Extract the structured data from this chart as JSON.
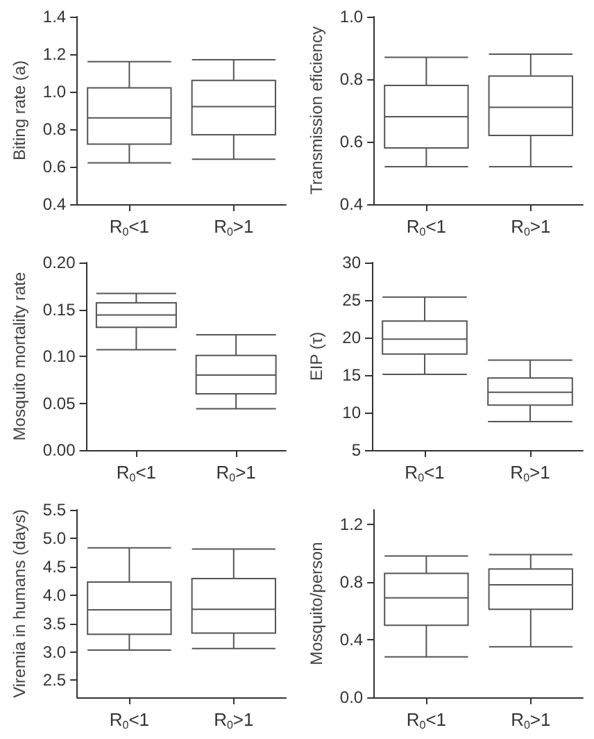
{
  "chart_data": [
    {
      "type": "box",
      "ylabel": "Biting rate (a)",
      "categories": [
        "R$_{0}$<1",
        "R$_{0}$>1"
      ],
      "ylim": [
        0.4,
        1.4
      ],
      "yticks": [
        0.4,
        0.6,
        0.8,
        {
          "value": 1,
          "label": "1.0"
        },
        1.2,
        1.4
      ],
      "boxes": [
        {
          "low": 0.62,
          "q1": 0.72,
          "median": 0.86,
          "q3": 1.02,
          "high": 1.16
        },
        {
          "low": 0.64,
          "q1": 0.77,
          "median": 0.92,
          "q3": 1.06,
          "high": 1.17
        }
      ]
    },
    {
      "type": "box",
      "ylabel": "Transmission eficiency",
      "categories": [
        "R$_{0}$<1",
        "R$_{0}$>1"
      ],
      "ylim": [
        0.4,
        1.0
      ],
      "yticks": [
        0.4,
        0.6,
        0.8,
        {
          "value": 1,
          "label": "1.0"
        }
      ],
      "boxes": [
        {
          "low": 0.52,
          "q1": 0.58,
          "median": 0.68,
          "q3": 0.78,
          "high": 0.87
        },
        {
          "low": 0.52,
          "q1": 0.62,
          "median": 0.71,
          "q3": 0.81,
          "high": 0.88
        }
      ]
    },
    {
      "type": "box",
      "ylabel": "Mosquito mortality rate",
      "categories": [
        "R$_{0}$<1",
        "R$_{0}$>1"
      ],
      "ylim": [
        0,
        0.2
      ],
      "yticks": [
        {
          "value": 0,
          "label": "0.00"
        },
        0.05,
        {
          "value": 0.1,
          "label": "0.10"
        },
        0.15,
        {
          "value": 0.2,
          "label": "0.20"
        }
      ],
      "boxes": [
        {
          "low": 0.107,
          "q1": 0.131,
          "median": 0.144,
          "q3": 0.157,
          "high": 0.167
        },
        {
          "low": 0.044,
          "q1": 0.06,
          "median": 0.08,
          "q3": 0.101,
          "high": 0.123
        }
      ]
    },
    {
      "type": "box",
      "ylabel": "EIP (τ)",
      "categories": [
        "R$_{0}$<1",
        "R$_{0}$>1"
      ],
      "ylim": [
        5,
        30
      ],
      "yticks": [
        5,
        10,
        15,
        20,
        25,
        30
      ],
      "boxes": [
        {
          "low": 15.1,
          "q1": 17.8,
          "median": 19.8,
          "q3": 22.2,
          "high": 25.4
        },
        {
          "low": 8.8,
          "q1": 11,
          "median": 12.7,
          "q3": 14.6,
          "high": 17
        }
      ]
    },
    {
      "type": "box",
      "ylabel": "Viremia in humans (days)",
      "categories": [
        "R$_{0}$<1",
        "R$_{0}$>1"
      ],
      "ylim": [
        2.2,
        5.5
      ],
      "yticks": [
        2.5,
        {
          "value": 3,
          "label": "3.0"
        },
        3.5,
        {
          "value": 4,
          "label": "4.0"
        },
        4.5,
        {
          "value": 5,
          "label": "5.0"
        },
        5.5
      ],
      "boxes": [
        {
          "low": 3.03,
          "q1": 3.31,
          "median": 3.74,
          "q3": 4.23,
          "high": 4.83
        },
        {
          "low": 3.06,
          "q1": 3.33,
          "median": 3.75,
          "q3": 4.29,
          "high": 4.81
        }
      ]
    },
    {
      "type": "box",
      "ylabel": "Mosquito/person",
      "categories": [
        "R$_{0}$<1",
        "R$_{0}$>1"
      ],
      "ylim": [
        0,
        1.3
      ],
      "yticks": [
        {
          "value": 0,
          "label": "0.0"
        },
        0.4,
        0.8,
        1.2
      ],
      "boxes": [
        {
          "low": 0.28,
          "q1": 0.5,
          "median": 0.69,
          "q3": 0.86,
          "high": 0.98
        },
        {
          "low": 0.35,
          "q1": 0.61,
          "median": 0.78,
          "q3": 0.89,
          "high": 0.99
        }
      ]
    }
  ]
}
